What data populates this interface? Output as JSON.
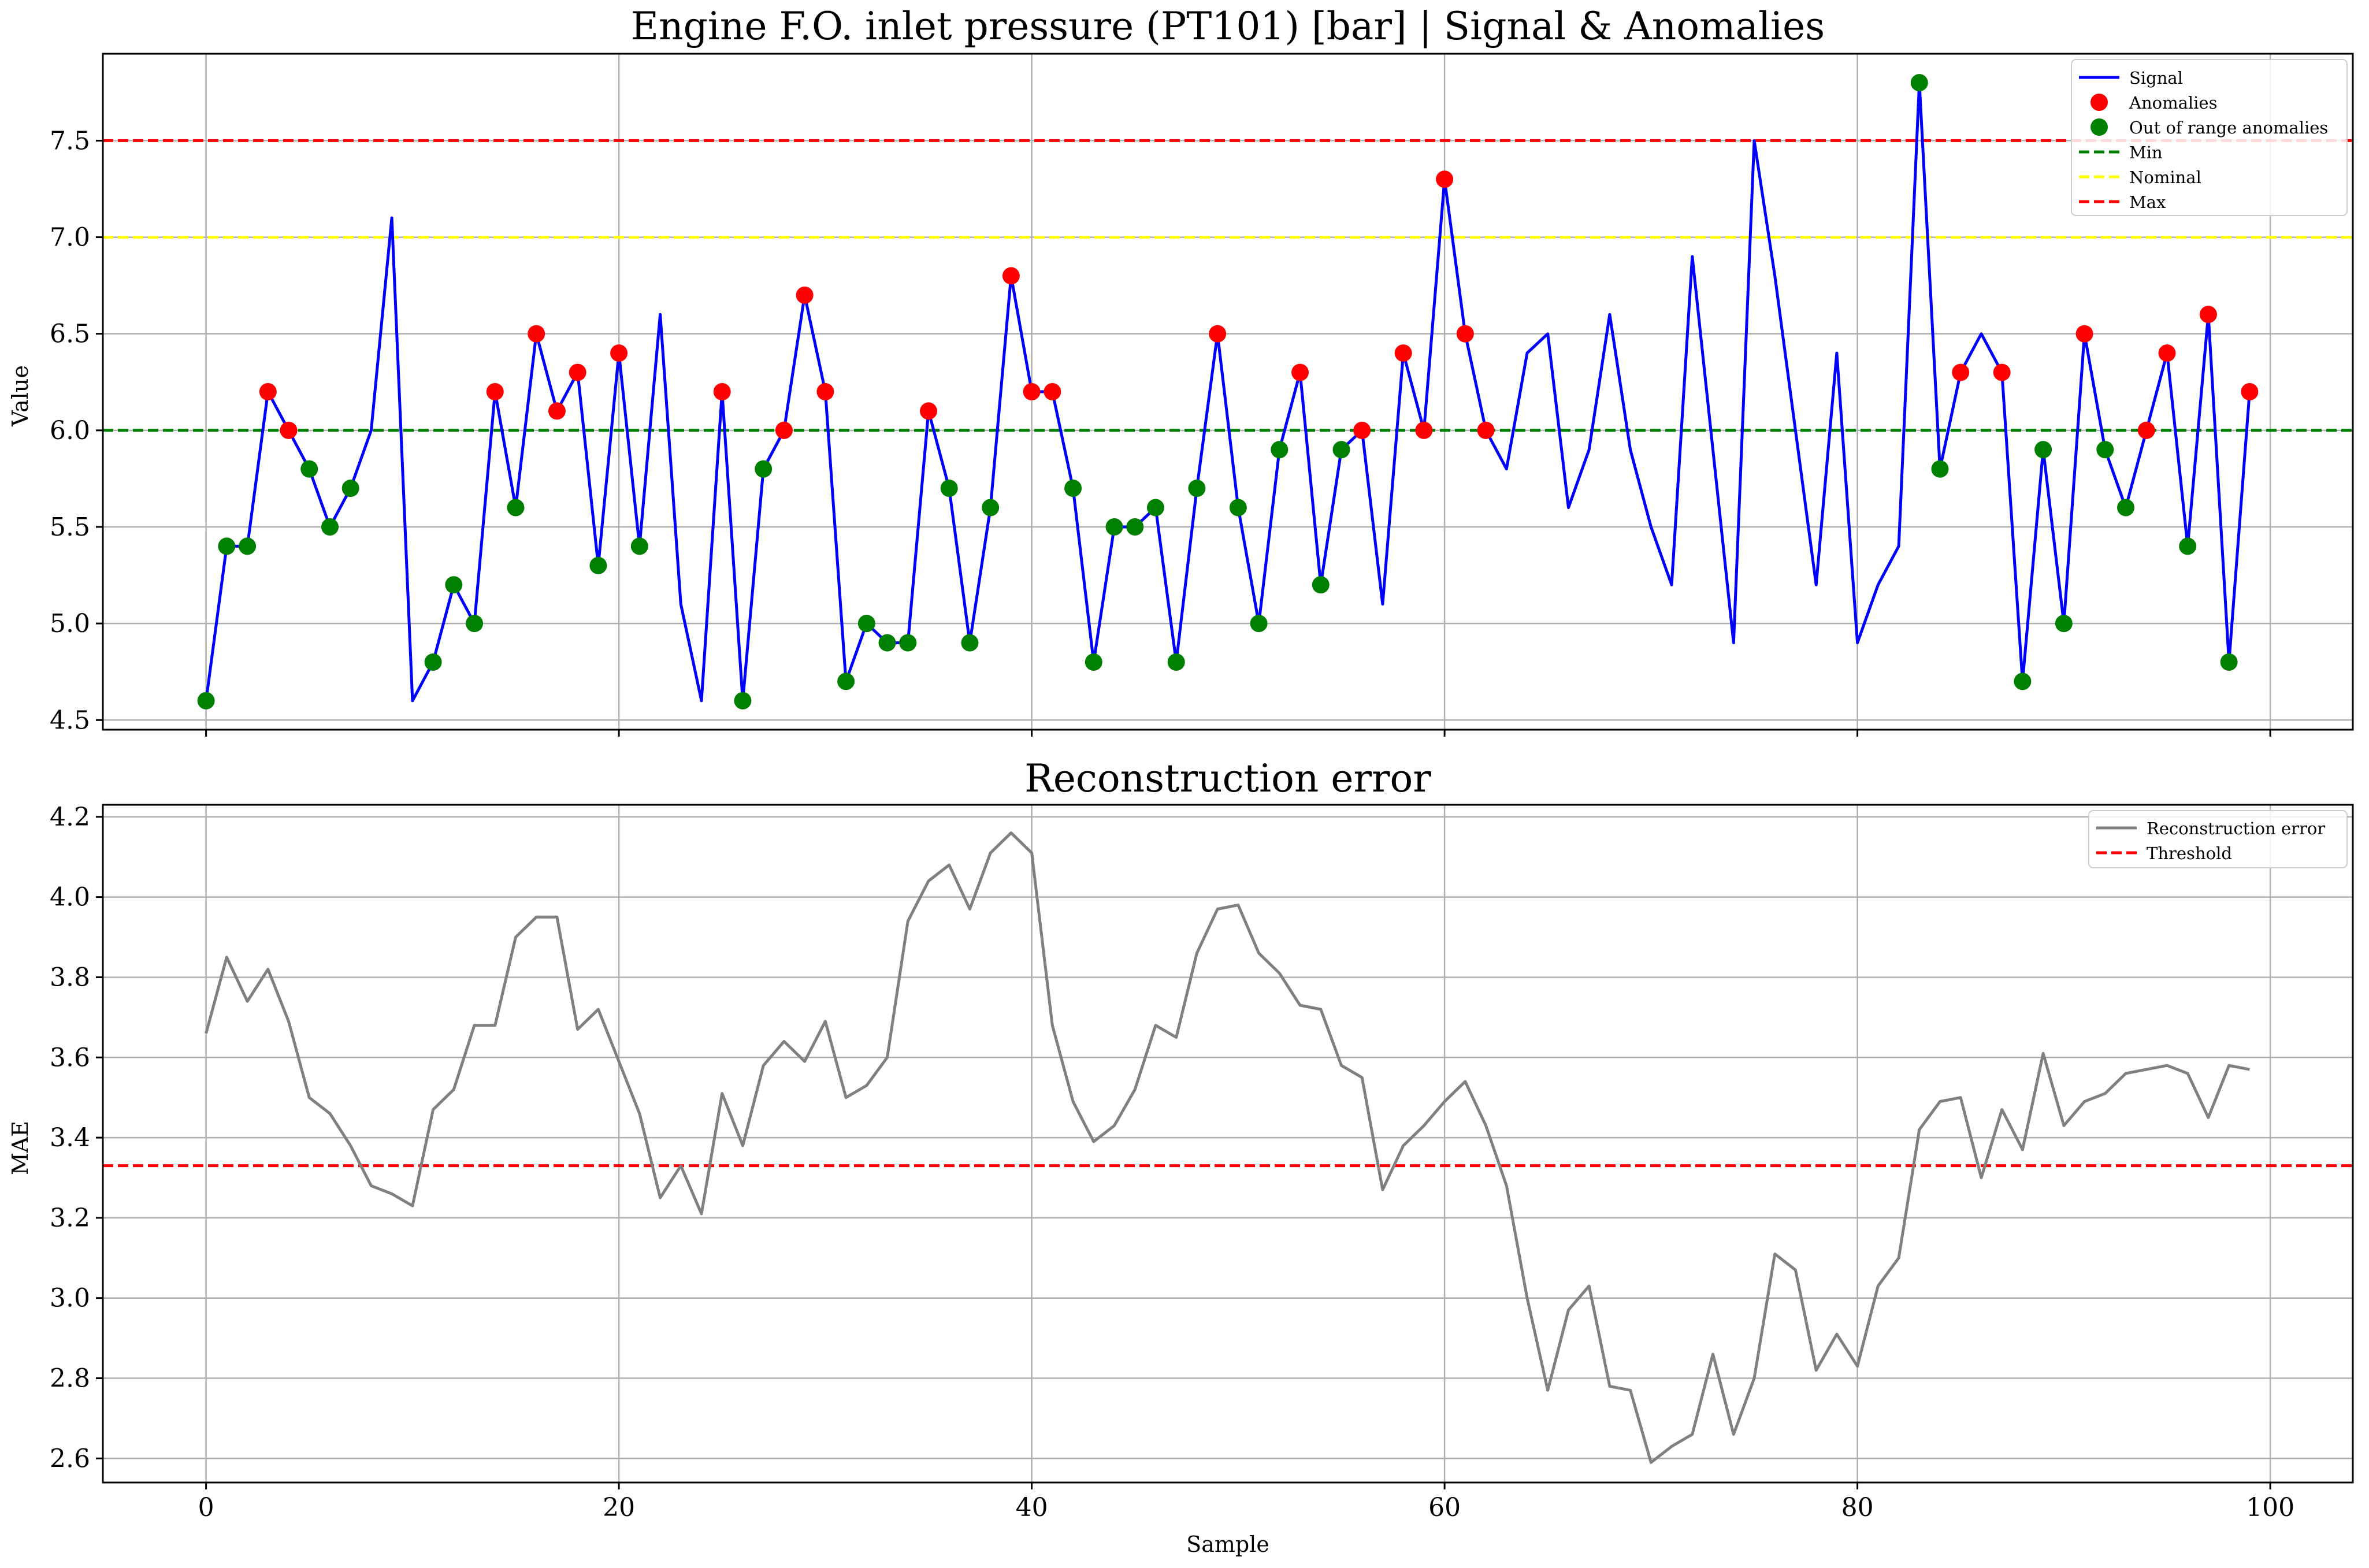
{
  "figure": {
    "xlabel": "Sample"
  },
  "chart_data": [
    {
      "type": "line",
      "title": "Engine F.O. inlet pressure (PT101) [bar] | Signal & Anomalies",
      "ylabel": "Value",
      "xlim": [
        -5,
        104
      ],
      "ylim": [
        4.45,
        7.95
      ],
      "x_ticks": [
        0,
        20,
        40,
        60,
        80,
        100
      ],
      "y_ticks": [
        4.5,
        5.0,
        5.5,
        6.0,
        6.5,
        7.0,
        7.5
      ],
      "y_tick_labels": [
        "4.5",
        "5.0",
        "5.5",
        "6.0",
        "6.5",
        "7.0",
        "7.5"
      ],
      "grid": true,
      "legend_position": "top-right",
      "series": [
        {
          "name": "Signal",
          "color": "#0000ff",
          "x_start": 0,
          "values": [
            4.6,
            5.4,
            5.4,
            6.2,
            6.0,
            5.8,
            5.5,
            5.7,
            6.0,
            7.1,
            4.6,
            4.8,
            5.2,
            5.0,
            6.2,
            5.6,
            6.5,
            6.1,
            6.3,
            5.3,
            6.4,
            5.4,
            6.6,
            5.1,
            4.6,
            6.2,
            4.6,
            5.8,
            6.0,
            6.7,
            6.2,
            4.7,
            5.0,
            4.9,
            4.9,
            6.1,
            5.7,
            4.9,
            5.6,
            6.8,
            6.2,
            6.2,
            5.7,
            4.8,
            5.5,
            5.5,
            5.6,
            4.8,
            5.7,
            6.5,
            5.6,
            5.0,
            5.9,
            6.3,
            5.2,
            5.9,
            6.0,
            5.1,
            6.4,
            6.0,
            7.3,
            6.5,
            6.0,
            5.8,
            6.4,
            6.5,
            5.6,
            5.9,
            6.6,
            5.9,
            5.5,
            5.2,
            6.9,
            5.9,
            4.9,
            7.5,
            6.8,
            6.0,
            5.2,
            6.4,
            4.9,
            5.2,
            5.4,
            7.8,
            5.8,
            6.3,
            6.5,
            6.3,
            4.7,
            5.9,
            5.0,
            6.5,
            5.9,
            5.6,
            6.0,
            6.4,
            5.4,
            6.6,
            4.8,
            6.2
          ]
        }
      ],
      "anomalies": {
        "name": "Anomalies",
        "color": "#ff0000",
        "x": [
          3,
          4,
          14,
          16,
          17,
          18,
          20,
          25,
          28,
          29,
          30,
          35,
          39,
          40,
          41,
          49,
          53,
          56,
          58,
          59,
          60,
          61,
          62,
          85,
          87,
          91,
          94,
          95,
          97,
          99
        ]
      },
      "out_of_range_anomalies": {
        "name": "Out of range anomalies",
        "color": "#008000",
        "x": [
          0,
          1,
          2,
          5,
          6,
          7,
          11,
          12,
          13,
          15,
          19,
          21,
          26,
          27,
          31,
          32,
          33,
          34,
          36,
          37,
          38,
          42,
          43,
          44,
          45,
          46,
          47,
          48,
          50,
          51,
          52,
          54,
          55,
          83,
          84,
          88,
          89,
          90,
          92,
          93,
          96,
          98
        ]
      },
      "reference_lines": [
        {
          "name": "Min",
          "value": 6.0,
          "color": "#008000"
        },
        {
          "name": "Nominal",
          "value": 7.0,
          "color": "#ffff00"
        },
        {
          "name": "Max",
          "value": 7.5,
          "color": "#ff0000"
        }
      ]
    },
    {
      "type": "line",
      "title": "Reconstruction error",
      "xlabel": "Sample",
      "ylabel": "MAE",
      "xlim": [
        -5,
        104
      ],
      "ylim": [
        2.54,
        4.23
      ],
      "x_ticks": [
        0,
        20,
        40,
        60,
        80,
        100
      ],
      "x_tick_labels": [
        "0",
        "20",
        "40",
        "60",
        "80",
        "100"
      ],
      "y_ticks": [
        2.6,
        2.8,
        3.0,
        3.2,
        3.4,
        3.6,
        3.8,
        4.0,
        4.2
      ],
      "y_tick_labels": [
        "2.6",
        "2.8",
        "3.0",
        "3.2",
        "3.4",
        "3.6",
        "3.8",
        "4.0",
        "4.2"
      ],
      "grid": true,
      "legend_position": "top-right",
      "series": [
        {
          "name": "Reconstruction error",
          "color": "#808080",
          "x_start": 0,
          "values": [
            3.66,
            3.85,
            3.74,
            3.82,
            3.69,
            3.5,
            3.46,
            3.38,
            3.28,
            3.26,
            3.23,
            3.47,
            3.52,
            3.68,
            3.68,
            3.9,
            3.95,
            3.95,
            3.67,
            3.72,
            3.59,
            3.46,
            3.25,
            3.33,
            3.21,
            3.51,
            3.38,
            3.58,
            3.64,
            3.59,
            3.69,
            3.5,
            3.53,
            3.6,
            3.94,
            4.04,
            4.08,
            3.97,
            4.11,
            4.16,
            4.11,
            3.68,
            3.49,
            3.39,
            3.43,
            3.52,
            3.68,
            3.65,
            3.86,
            3.97,
            3.98,
            3.86,
            3.81,
            3.73,
            3.72,
            3.58,
            3.55,
            3.27,
            3.38,
            3.43,
            3.49,
            3.54,
            3.43,
            3.28,
            3.0,
            2.77,
            2.97,
            3.03,
            2.78,
            2.77,
            2.59,
            2.63,
            2.66,
            2.86,
            2.66,
            2.8,
            3.11,
            3.07,
            2.82,
            2.91,
            2.83,
            3.03,
            3.1,
            3.42,
            3.49,
            3.5,
            3.3,
            3.47,
            3.37,
            3.61,
            3.43,
            3.49,
            3.51,
            3.56,
            3.57,
            3.58,
            3.56,
            3.45,
            3.58,
            3.57
          ]
        }
      ],
      "reference_lines": [
        {
          "name": "Threshold",
          "value": 3.33,
          "color": "#ff0000"
        }
      ]
    }
  ]
}
